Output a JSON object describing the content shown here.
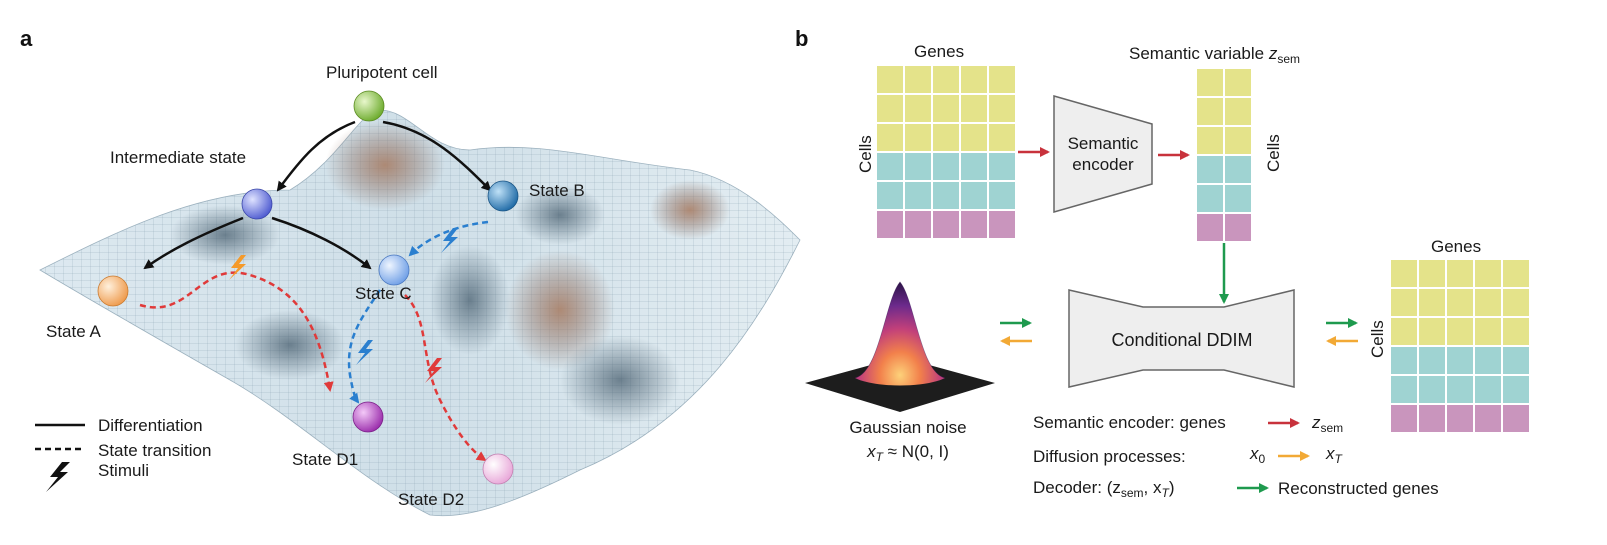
{
  "panel_a": {
    "letter": "a",
    "nodes": {
      "pluripotent": "Pluripotent cell",
      "intermediate": "Intermediate state",
      "state_a": "State A",
      "state_b": "State B",
      "state_c": "State C",
      "state_d1": "State D1",
      "state_d2": "State D2"
    },
    "legend": {
      "differentiation": "Differentiation",
      "state_transition": "State transition",
      "stimuli": "Stimuli"
    },
    "colors": {
      "pluripotent": "#8cc63f",
      "intermediate": "#6f7fe0",
      "state_a": "#f5b06b",
      "state_b": "#2f7fb8",
      "state_c": "#8fb8ee",
      "state_d1": "#b33fc0",
      "state_d2": "#f2bfe6",
      "transition_red": "#e03a3a",
      "transition_blue": "#2a7fcf",
      "stimulus_orange": "#f59a2a"
    }
  },
  "panel_b": {
    "letter": "b",
    "input_matrix": {
      "top_label": "Genes",
      "side_label": "Cells"
    },
    "encoder_label_line1": "Semantic",
    "encoder_label_line2": "encoder",
    "semantic_matrix": {
      "top_label": "Semantic variable ",
      "top_var": "z",
      "top_sub": "sem",
      "side_label": "Cells"
    },
    "ddim_label": "Conditional DDIM",
    "output_matrix": {
      "top_label": "Genes",
      "side_label": "Cells"
    },
    "noise_label": "Gaussian noise",
    "noise_formula_x": "x",
    "noise_formula_sub": "T",
    "noise_formula_rest": " ≈ N(0, I)",
    "legend_rows": {
      "row1_label": "Semantic encoder: genes",
      "row1_var": "z",
      "row1_sub": "sem",
      "row2_label": "Diffusion processes:",
      "row2_from": "x",
      "row2_from_sub": "0",
      "row2_to": "x",
      "row2_to_sub": "T",
      "row3_label": "Decoder: (z",
      "row3_sub": "sem",
      "row3_rest": ", x",
      "row3_sub2": "T",
      "row3_close": ")",
      "row3_result": "Reconstructed genes"
    },
    "colors": {
      "yellow": "#e4e38a",
      "teal": "#9fd3d2",
      "pink": "#c995bd",
      "arrow_red": "#c8323c",
      "arrow_green": "#1e9a4e",
      "arrow_orange": "#f2a935",
      "shape_fill": "#eeeeee",
      "shape_stroke": "#666666"
    }
  }
}
